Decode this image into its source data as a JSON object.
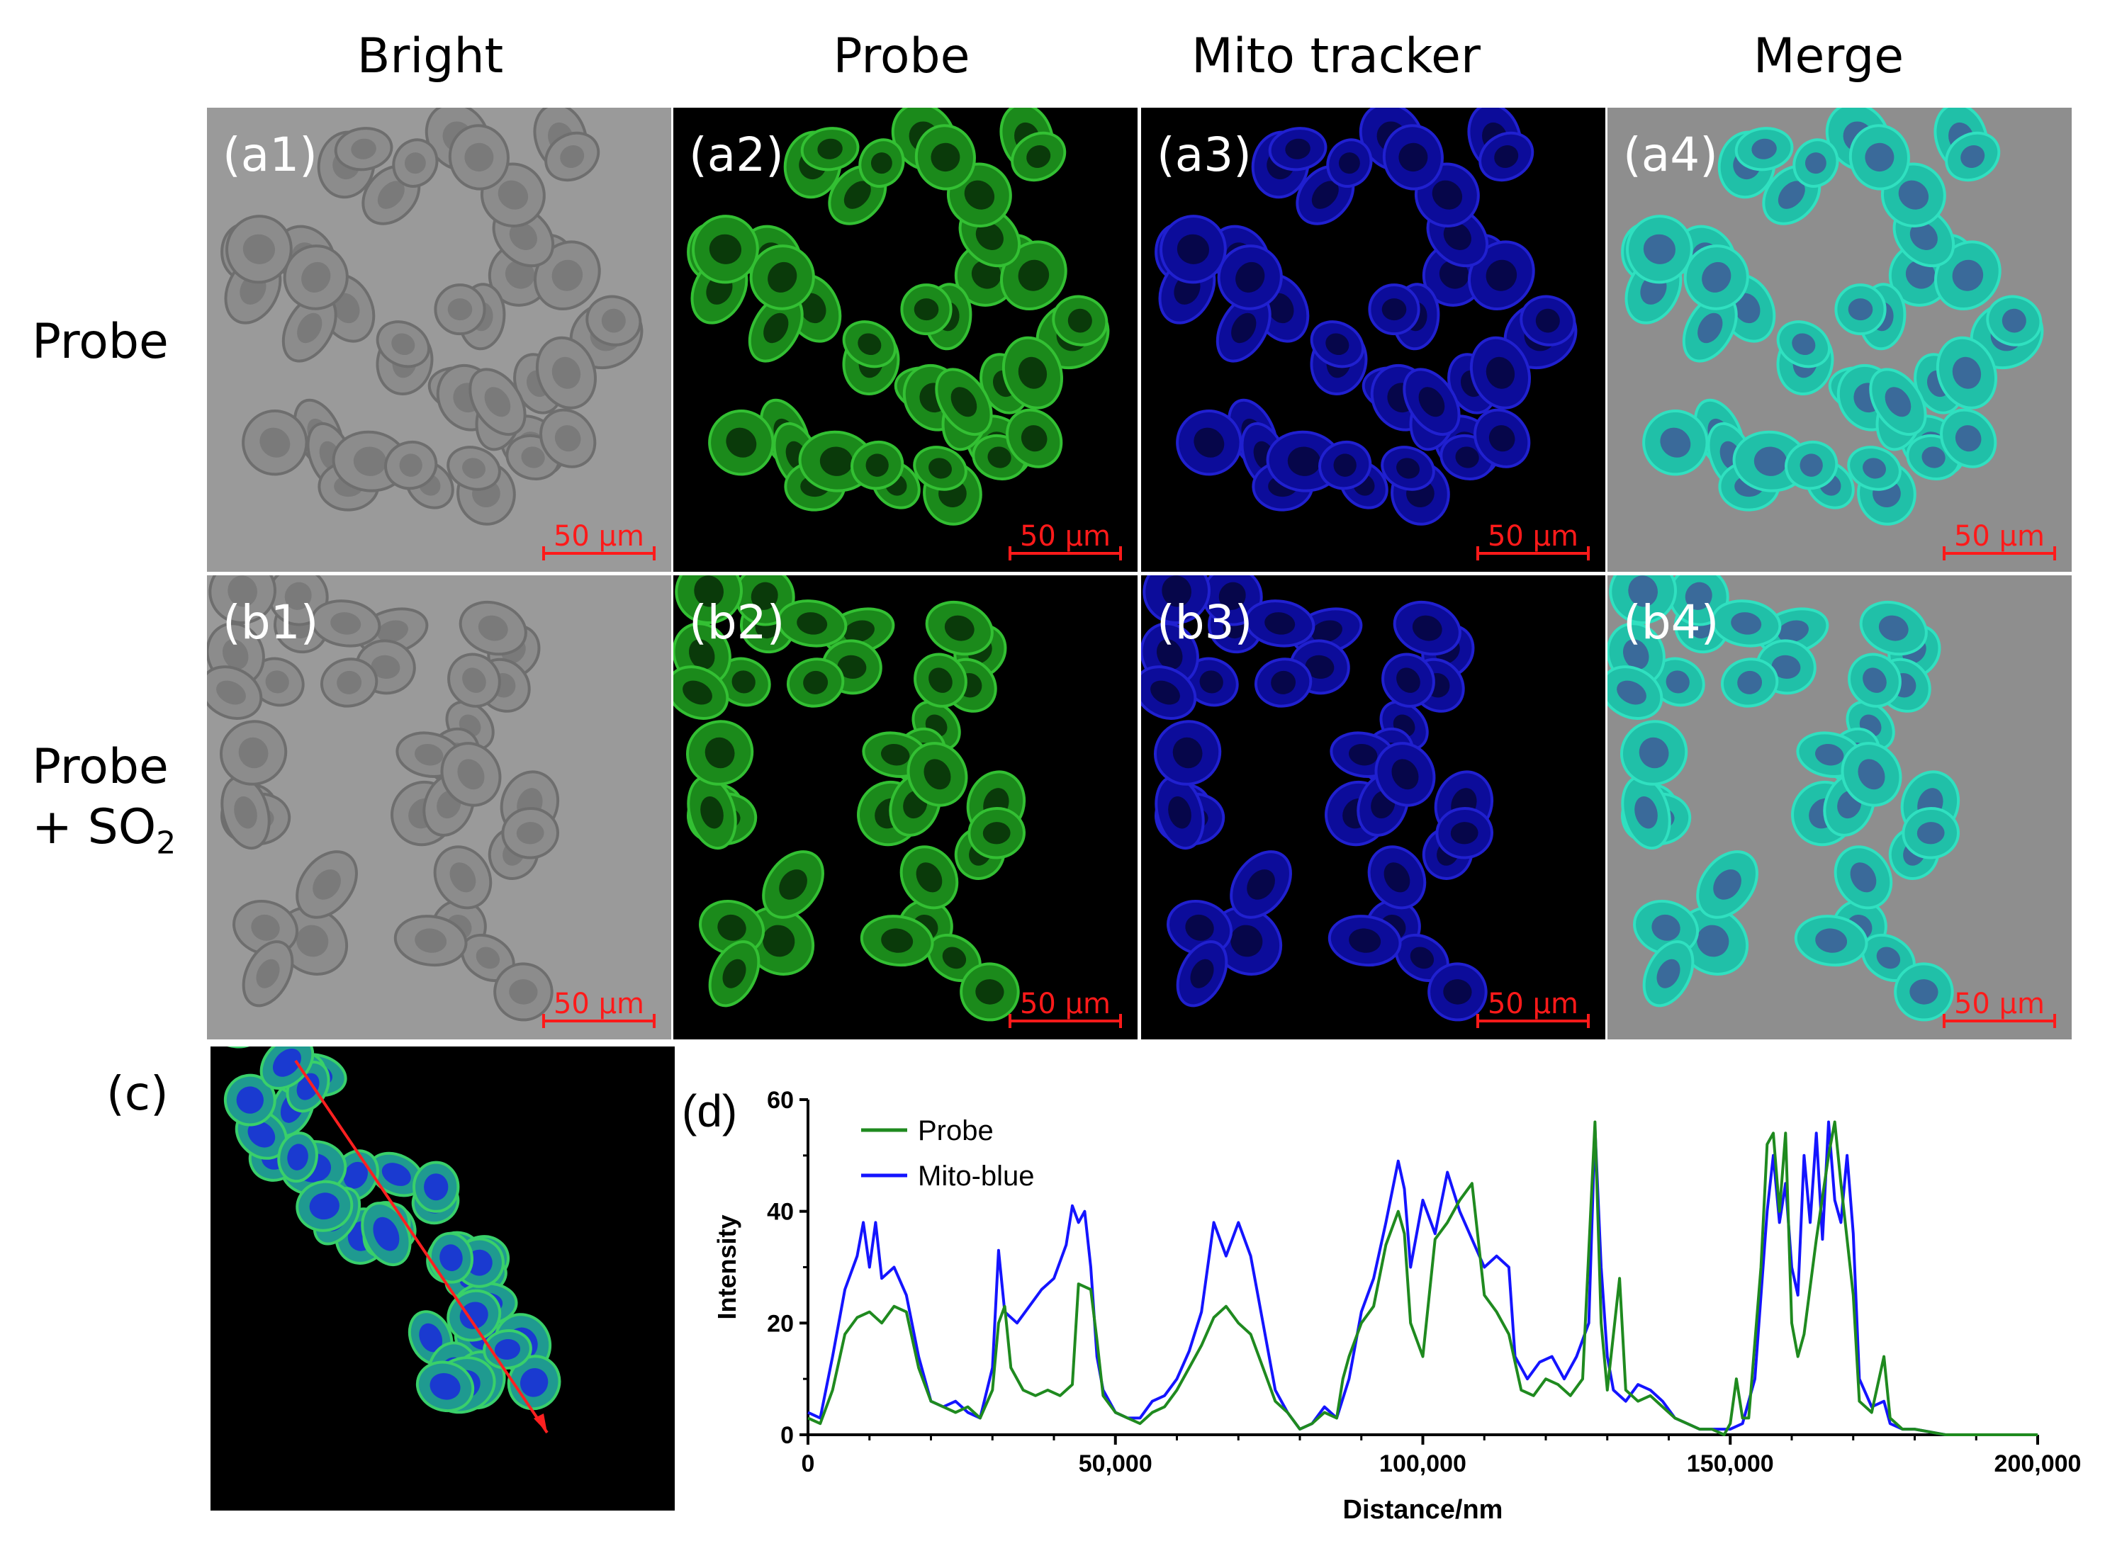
{
  "columns": [
    "Bright",
    "Probe",
    "Mito tracker",
    "Merge"
  ],
  "rows": {
    "a": "Probe",
    "b_line1": "Probe",
    "b_line2_prefix": "+ SO",
    "b_line2_sub": "2"
  },
  "panel_labels": {
    "a": [
      "(a1)",
      "(a2)",
      "(a3)",
      "(a4)"
    ],
    "b": [
      "(b1)",
      "(b2)",
      "(b3)",
      "(b4)"
    ]
  },
  "scale_bar": "50 µm",
  "panel_c_label": "(c)",
  "panel_d_label": "(d)",
  "colors": {
    "probe": "#1f8a1f",
    "mito": "#1414ff",
    "scale": "#ff1a1a",
    "arrow": "#ff2020"
  },
  "chart_data": {
    "type": "line",
    "xlabel": "Distance/nm",
    "ylabel": "Intensity",
    "xlim": [
      0,
      200000
    ],
    "ylim": [
      0,
      60
    ],
    "x_ticks": [
      0,
      50000,
      100000,
      150000,
      200000
    ],
    "x_tick_labels": [
      "0",
      "50,000",
      "100,000",
      "150,000",
      "200,000"
    ],
    "y_ticks": [
      0,
      20,
      40,
      60
    ],
    "y_tick_labels": [
      "0",
      "20",
      "40",
      "60"
    ],
    "legend_position": "top-left",
    "series": [
      {
        "name": "Probe",
        "color": "#1f8a1f",
        "points": [
          [
            0,
            3
          ],
          [
            2000,
            2
          ],
          [
            4000,
            8
          ],
          [
            6000,
            18
          ],
          [
            8000,
            21
          ],
          [
            10000,
            22
          ],
          [
            12000,
            20
          ],
          [
            14000,
            23
          ],
          [
            16000,
            22
          ],
          [
            18000,
            12
          ],
          [
            20000,
            6
          ],
          [
            22000,
            5
          ],
          [
            24000,
            4
          ],
          [
            26000,
            5
          ],
          [
            28000,
            3
          ],
          [
            30000,
            8
          ],
          [
            31000,
            20
          ],
          [
            32000,
            23
          ],
          [
            33000,
            12
          ],
          [
            35000,
            8
          ],
          [
            37000,
            7
          ],
          [
            39000,
            8
          ],
          [
            41000,
            7
          ],
          [
            43000,
            9
          ],
          [
            44000,
            27
          ],
          [
            46000,
            26
          ],
          [
            47000,
            17
          ],
          [
            48000,
            7
          ],
          [
            50000,
            4
          ],
          [
            52000,
            3
          ],
          [
            54000,
            2
          ],
          [
            56000,
            4
          ],
          [
            58000,
            5
          ],
          [
            60000,
            8
          ],
          [
            62000,
            12
          ],
          [
            64000,
            16
          ],
          [
            66000,
            21
          ],
          [
            68000,
            23
          ],
          [
            70000,
            20
          ],
          [
            72000,
            18
          ],
          [
            74000,
            12
          ],
          [
            76000,
            6
          ],
          [
            78000,
            4
          ],
          [
            80000,
            1
          ],
          [
            82000,
            2
          ],
          [
            84000,
            4
          ],
          [
            86000,
            3
          ],
          [
            87000,
            10
          ],
          [
            88000,
            14
          ],
          [
            90000,
            20
          ],
          [
            92000,
            23
          ],
          [
            94000,
            34
          ],
          [
            96000,
            40
          ],
          [
            97000,
            36
          ],
          [
            98000,
            20
          ],
          [
            100000,
            14
          ],
          [
            102000,
            35
          ],
          [
            104000,
            38
          ],
          [
            106000,
            42
          ],
          [
            108000,
            45
          ],
          [
            110000,
            25
          ],
          [
            112000,
            22
          ],
          [
            114000,
            18
          ],
          [
            116000,
            8
          ],
          [
            118000,
            7
          ],
          [
            120000,
            10
          ],
          [
            122000,
            9
          ],
          [
            124000,
            7
          ],
          [
            126000,
            10
          ],
          [
            128000,
            56
          ],
          [
            129000,
            20
          ],
          [
            130000,
            8
          ],
          [
            132000,
            28
          ],
          [
            133000,
            8
          ],
          [
            135000,
            6
          ],
          [
            137000,
            7
          ],
          [
            139000,
            5
          ],
          [
            141000,
            3
          ],
          [
            143000,
            2
          ],
          [
            145000,
            1
          ],
          [
            147000,
            1
          ],
          [
            149000,
            0
          ],
          [
            150000,
            2
          ],
          [
            151000,
            10
          ],
          [
            152000,
            3
          ],
          [
            153000,
            3
          ],
          [
            155000,
            30
          ],
          [
            156000,
            52
          ],
          [
            157000,
            54
          ],
          [
            158000,
            40
          ],
          [
            159000,
            54
          ],
          [
            160000,
            20
          ],
          [
            161000,
            14
          ],
          [
            162000,
            18
          ],
          [
            164000,
            35
          ],
          [
            166000,
            50
          ],
          [
            167000,
            56
          ],
          [
            168000,
            45
          ],
          [
            170000,
            25
          ],
          [
            171000,
            6
          ],
          [
            173000,
            4
          ],
          [
            175000,
            14
          ],
          [
            176000,
            3
          ],
          [
            178000,
            1
          ],
          [
            180000,
            1
          ],
          [
            185000,
            0
          ],
          [
            190000,
            0
          ],
          [
            195000,
            0
          ],
          [
            200000,
            0
          ]
        ]
      },
      {
        "name": "Mito-blue",
        "color": "#1414ff",
        "points": [
          [
            0,
            4
          ],
          [
            2000,
            3
          ],
          [
            4000,
            14
          ],
          [
            6000,
            26
          ],
          [
            8000,
            32
          ],
          [
            9000,
            38
          ],
          [
            10000,
            30
          ],
          [
            11000,
            38
          ],
          [
            12000,
            28
          ],
          [
            14000,
            30
          ],
          [
            16000,
            25
          ],
          [
            18000,
            14
          ],
          [
            20000,
            6
          ],
          [
            22000,
            5
          ],
          [
            24000,
            6
          ],
          [
            26000,
            4
          ],
          [
            28000,
            3
          ],
          [
            30000,
            12
          ],
          [
            31000,
            33
          ],
          [
            32000,
            22
          ],
          [
            34000,
            20
          ],
          [
            36000,
            23
          ],
          [
            38000,
            26
          ],
          [
            40000,
            28
          ],
          [
            42000,
            34
          ],
          [
            43000,
            41
          ],
          [
            44000,
            38
          ],
          [
            45000,
            40
          ],
          [
            46000,
            30
          ],
          [
            47000,
            14
          ],
          [
            48000,
            8
          ],
          [
            50000,
            4
          ],
          [
            52000,
            3
          ],
          [
            54000,
            3
          ],
          [
            56000,
            6
          ],
          [
            58000,
            7
          ],
          [
            60000,
            10
          ],
          [
            62000,
            15
          ],
          [
            64000,
            22
          ],
          [
            65000,
            30
          ],
          [
            66000,
            38
          ],
          [
            68000,
            32
          ],
          [
            70000,
            38
          ],
          [
            72000,
            32
          ],
          [
            74000,
            20
          ],
          [
            76000,
            8
          ],
          [
            78000,
            4
          ],
          [
            80000,
            1
          ],
          [
            82000,
            2
          ],
          [
            84000,
            5
          ],
          [
            86000,
            3
          ],
          [
            88000,
            10
          ],
          [
            90000,
            22
          ],
          [
            92000,
            28
          ],
          [
            94000,
            38
          ],
          [
            96000,
            49
          ],
          [
            97000,
            44
          ],
          [
            98000,
            30
          ],
          [
            100000,
            42
          ],
          [
            102000,
            36
          ],
          [
            104000,
            47
          ],
          [
            106000,
            40
          ],
          [
            108000,
            35
          ],
          [
            110000,
            30
          ],
          [
            112000,
            32
          ],
          [
            114000,
            30
          ],
          [
            115000,
            14
          ],
          [
            117000,
            10
          ],
          [
            119000,
            13
          ],
          [
            121000,
            14
          ],
          [
            123000,
            10
          ],
          [
            125000,
            14
          ],
          [
            127000,
            20
          ],
          [
            128000,
            55
          ],
          [
            129000,
            30
          ],
          [
            130000,
            14
          ],
          [
            131000,
            8
          ],
          [
            133000,
            6
          ],
          [
            135000,
            9
          ],
          [
            137000,
            8
          ],
          [
            139000,
            6
          ],
          [
            141000,
            3
          ],
          [
            143000,
            2
          ],
          [
            145000,
            1
          ],
          [
            147000,
            1
          ],
          [
            150000,
            1
          ],
          [
            152000,
            2
          ],
          [
            154000,
            10
          ],
          [
            156000,
            40
          ],
          [
            157000,
            50
          ],
          [
            158000,
            38
          ],
          [
            159000,
            45
          ],
          [
            160000,
            30
          ],
          [
            161000,
            25
          ],
          [
            162000,
            50
          ],
          [
            163000,
            38
          ],
          [
            164000,
            54
          ],
          [
            165000,
            35
          ],
          [
            166000,
            56
          ],
          [
            167000,
            42
          ],
          [
            168000,
            38
          ],
          [
            169000,
            50
          ],
          [
            170000,
            36
          ],
          [
            171000,
            10
          ],
          [
            173000,
            5
          ],
          [
            175000,
            6
          ],
          [
            176000,
            2
          ],
          [
            178000,
            1
          ],
          [
            180000,
            1
          ],
          [
            185000,
            0
          ],
          [
            190000,
            0
          ],
          [
            195000,
            0
          ],
          [
            200000,
            0
          ]
        ]
      }
    ]
  }
}
